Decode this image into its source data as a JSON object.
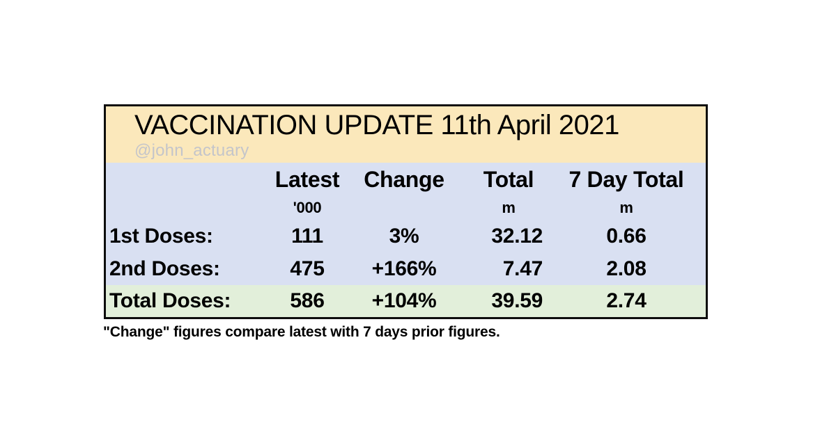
{
  "chart_data": {
    "type": "table",
    "title": "VACCINATION UPDATE 11th April 2021",
    "author_handle": "@john_actuary",
    "columns": [
      "",
      "Latest ('000)",
      "Change",
      "Total (m)",
      "7 Day Total (m)"
    ],
    "rows": [
      [
        "1st Doses:",
        111,
        "3%",
        32.12,
        0.66
      ],
      [
        "2nd Doses:",
        475,
        "+166%",
        7.47,
        2.08
      ],
      [
        "Total Doses:",
        586,
        "+104%",
        39.59,
        2.74
      ]
    ],
    "note": "\"Change\" figures compare latest with 7 days prior figures.",
    "layout_hints": {
      "title_bg": "#fbe8bb",
      "body_bg": "#d9e0f2",
      "total_row_bg": "#e2efda",
      "border_color": "#0d0d0d",
      "handle_color": "#c4c5ca"
    }
  },
  "card": {
    "title": "VACCINATION UPDATE 11th April 2021",
    "handle": "@john_actuary",
    "header": {
      "latest": "Latest",
      "change": "Change",
      "total": "Total",
      "day7": "7 Day Total"
    },
    "units": {
      "latest": "'000",
      "total": "m",
      "day7": "m"
    },
    "rows": [
      {
        "label": "1st Doses:",
        "latest": "111",
        "change": "3%",
        "total": "32.12",
        "day7": "0.66"
      },
      {
        "label": "2nd Doses:",
        "latest": "475",
        "change": "+166%",
        "total": "7.47",
        "day7": "2.08"
      },
      {
        "label": "Total Doses:",
        "latest": "586",
        "change": "+104%",
        "total": "39.59",
        "day7": "2.74"
      }
    ]
  },
  "footnote": "\"Change\" figures compare latest with 7 days prior figures."
}
